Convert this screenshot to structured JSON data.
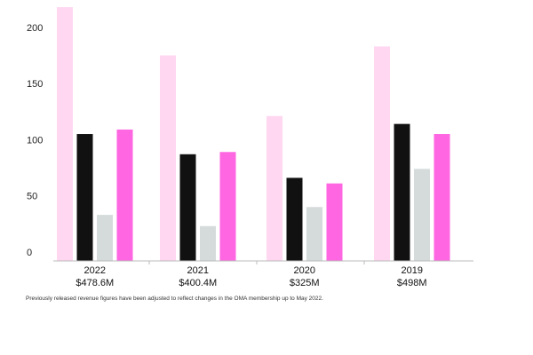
{
  "chart_data": {
    "type": "bar",
    "categories": [
      "2022",
      "2021",
      "2020",
      "2019"
    ],
    "category_sublabels": [
      "$478.6M",
      "$400.4M",
      "$325M",
      "$498M"
    ],
    "series": [
      {
        "values": [
          226,
          183,
          129,
          191
        ],
        "color": "#ffd7f1"
      },
      {
        "values": [
          113,
          95,
          74,
          122
        ],
        "color": "#111111"
      },
      {
        "values": [
          41,
          31,
          48,
          82
        ],
        "color": "#d5dbdb"
      },
      {
        "values": [
          117,
          97,
          69,
          113
        ],
        "color": "#ff66e1"
      }
    ],
    "yticks": [
      "0",
      "50",
      "100",
      "150",
      "200"
    ],
    "ylim": [
      0,
      230
    ],
    "grid": false,
    "title": "",
    "xlabel": "",
    "ylabel": ""
  },
  "footnote": "Previously released revenue figures have been adjusted to reflect changes in the OMA membership up to May 2022."
}
